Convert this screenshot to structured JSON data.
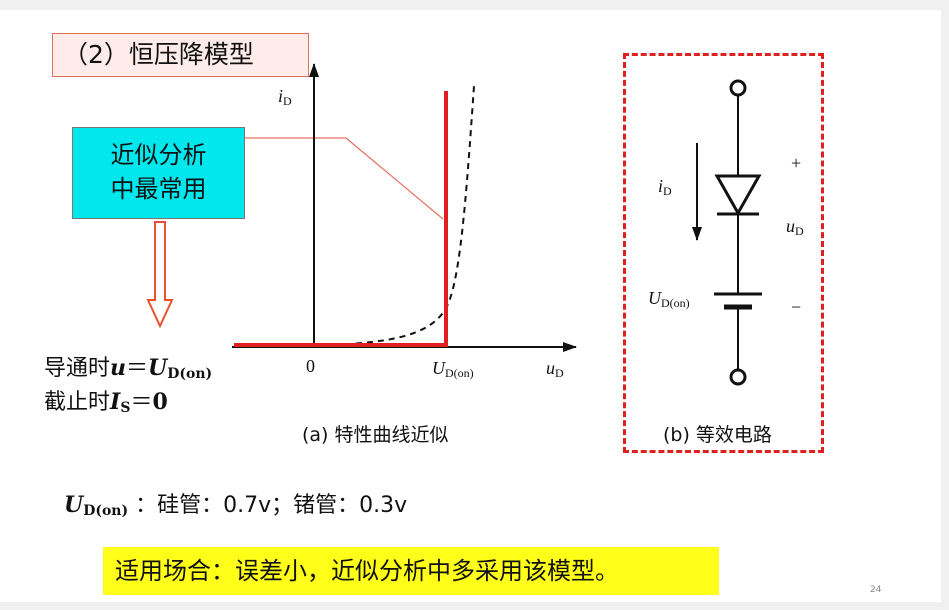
{
  "title": "（2）恒压降模型",
  "callout": {
    "line1": "近似分析",
    "line2": "中最常用"
  },
  "state_on": {
    "prefix": "导通时",
    "var_u": "u",
    "eq": "＝",
    "var_U": "U",
    "sub": "D(on)"
  },
  "state_off": {
    "prefix": "截止时",
    "var_I": "I",
    "sub": "S",
    "eq": "＝",
    "val": "0"
  },
  "graph": {
    "y_label_var": "i",
    "y_label_sub": "D",
    "x_label_var": "u",
    "x_label_sub": "D",
    "origin": "0",
    "threshold_var": "U",
    "threshold_sub": "D(on)",
    "caption": "(a)  特性曲线近似"
  },
  "circuit": {
    "current_var": "i",
    "current_sub": "D",
    "voltage_var": "u",
    "voltage_sub": "D",
    "plus": "+",
    "minus": "−",
    "source_var": "U",
    "source_sub": "D(on)",
    "caption": "(b)  等效电路"
  },
  "note": {
    "var": "U",
    "sub": "D(on)",
    "text": " ：硅管：0.7v；锗管：0.3v"
  },
  "highlight": "适用场合：误差小，近似分析中多采用该模型。",
  "page_number": "24",
  "colors": {
    "red": "#e02020",
    "cyan": "#00e8ee",
    "yellow": "#ffff1a",
    "pink": "#fdecea"
  }
}
